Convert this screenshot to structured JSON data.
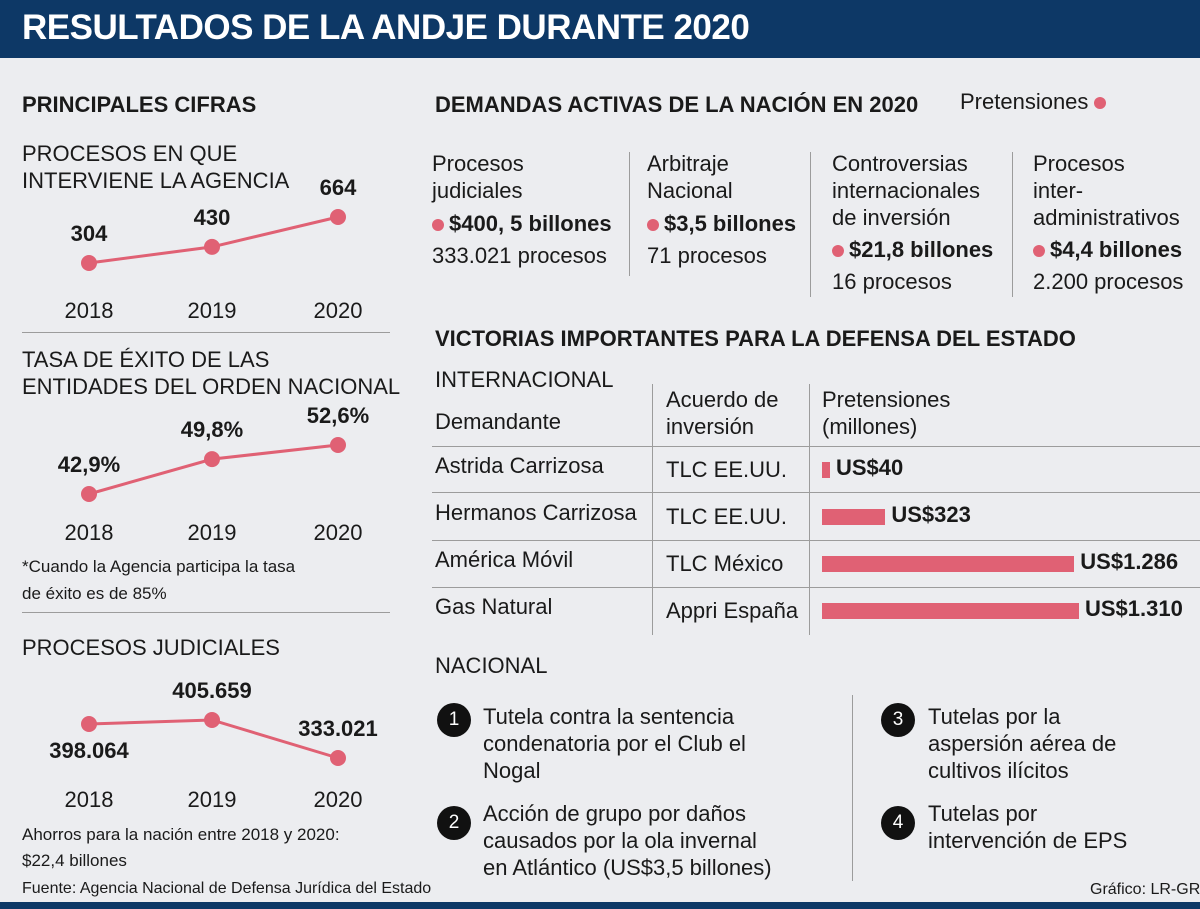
{
  "title": "RESULTADOS DE LA ANDJE DURANTE 2020",
  "left_heading": "PRINCIPALES CIFRAS",
  "chart_data": [
    {
      "type": "line",
      "title_lines": [
        "PROCESOS EN QUE",
        "INTERVIENE LA AGENCIA"
      ],
      "categories": [
        "2018",
        "2019",
        "2020"
      ],
      "values": [
        304,
        430,
        664
      ],
      "value_labels": [
        "304",
        "430",
        "664"
      ]
    },
    {
      "type": "line",
      "title_lines": [
        "TASA DE ÉXITO DE LAS",
        "ENTIDADES DEL ORDEN NACIONAL"
      ],
      "categories": [
        "2018",
        "2019",
        "2020"
      ],
      "values": [
        42.9,
        49.8,
        52.6
      ],
      "value_labels": [
        "42,9%",
        "49,8%",
        "52,6%"
      ],
      "note_lines": [
        "*Cuando la Agencia participa la tasa",
        "de éxito es de 85%"
      ]
    },
    {
      "type": "line",
      "title_lines": [
        "PROCESOS JUDICIALES"
      ],
      "categories": [
        "2018",
        "2019",
        "2020"
      ],
      "values": [
        398064,
        405659,
        333021
      ],
      "value_labels": [
        "398.064",
        "405.659",
        "333.021"
      ],
      "note_lines": [
        "Ahorros para la nación entre 2018 y 2020:",
        "$22,4 billones"
      ]
    },
    {
      "type": "bar",
      "orientation": "horizontal",
      "title": "VICTORIAS IMPORTANTES PARA LA DEFENSA DEL ESTADO",
      "section": "INTERNACIONAL",
      "col_headers": [
        "Demandante",
        [
          "Acuerdo de",
          "inversión"
        ],
        [
          "Pretensiones",
          "(millones)"
        ]
      ],
      "categories": [
        "Astrida Carrizosa",
        "Hermanos Carrizosa",
        "América Móvil",
        "Gas Natural"
      ],
      "agreements": [
        "TLC EE.UU.",
        "TLC EE.UU.",
        "TLC México",
        "Appri España"
      ],
      "values": [
        40,
        323,
        1286,
        1310
      ],
      "value_labels": [
        "US$40",
        "US$323",
        "US$1.286",
        "US$1.310"
      ],
      "unit": "millones de US$"
    }
  ],
  "demands": {
    "title": "DEMANDAS ACTIVAS DE LA NACIÓN EN 2020",
    "legend": "Pretensiones",
    "items": [
      {
        "label_lines": [
          "Procesos",
          "judiciales"
        ],
        "amount": "$400, 5 billones",
        "count": "333.021 procesos"
      },
      {
        "label_lines": [
          "Arbitraje",
          "Nacional"
        ],
        "amount": "$3,5 billones",
        "count": "71 procesos"
      },
      {
        "label_lines": [
          "Controversias",
          "internacionales",
          "de inversión"
        ],
        "amount": "$21,8 billones",
        "count": "16 procesos"
      },
      {
        "label_lines": [
          "Procesos",
          "inter-",
          "administrativos"
        ],
        "amount": "$4,4 billones",
        "count": "2.200 procesos"
      }
    ]
  },
  "nacional": {
    "heading": "NACIONAL",
    "items": [
      {
        "num": "1",
        "lines": [
          "Tutela contra la sentencia",
          "condenatoria por el Club el",
          "Nogal"
        ]
      },
      {
        "num": "2",
        "lines": [
          "Acción de grupo por daños",
          "causados por la ola invernal",
          "en Atlántico (US$3,5 billones)"
        ]
      },
      {
        "num": "3",
        "lines": [
          "Tutelas por la",
          "aspersión aérea de",
          "cultivos ilícitos"
        ]
      },
      {
        "num": "4",
        "lines": [
          "Tutelas por",
          "intervención de EPS"
        ]
      }
    ]
  },
  "footer": {
    "source": "Fuente: Agencia Nacional de Defensa Jurídica del Estado",
    "credit": "Gráfico: LR-GR"
  },
  "colors": {
    "header": "#0d3866",
    "accent": "#e06174",
    "background": "#ecedf0"
  }
}
